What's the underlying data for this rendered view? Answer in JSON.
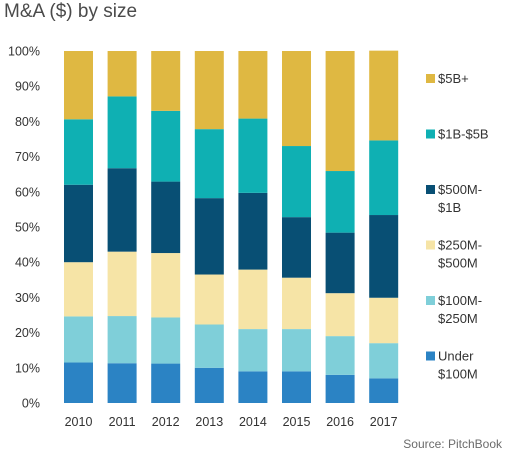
{
  "chart_data": {
    "type": "bar",
    "stacked": true,
    "title": "M&A ($) by size",
    "source": "Source: PitchBook",
    "categories": [
      "2010",
      "2011",
      "2012",
      "2013",
      "2014",
      "2015",
      "2016",
      "2017"
    ],
    "ylim": [
      0,
      100
    ],
    "yticks": [
      "0%",
      "10%",
      "20%",
      "30%",
      "40%",
      "50%",
      "60%",
      "70%",
      "80%",
      "90%",
      "100%"
    ],
    "legend_position": "right",
    "grid": false,
    "series": [
      {
        "name": "Under $100M",
        "label_lines": [
          "Under",
          "$100M"
        ],
        "color": "#2b83c4",
        "values": [
          11.5,
          11.3,
          11.2,
          10,
          9,
          9,
          8,
          7
        ]
      },
      {
        "name": "$100M-$250M",
        "label_lines": [
          "$100M-",
          "$250M"
        ],
        "color": "#7fcfd9",
        "values": [
          13.1,
          13.4,
          13.1,
          12.3,
          12,
          12,
          11,
          10
        ]
      },
      {
        "name": "$250M-$500M",
        "label_lines": [
          "$250M-",
          "$500M"
        ],
        "color": "#f6e4a6",
        "values": [
          15.4,
          18.3,
          18.3,
          14.2,
          16.9,
          14.6,
          12.2,
          12.9
        ]
      },
      {
        "name": "$500M-$1B",
        "label_lines": [
          "$500M-",
          "$1B"
        ],
        "color": "#084f74",
        "values": [
          22,
          23.7,
          20.3,
          21.7,
          21.8,
          17.2,
          17.2,
          23.5
        ]
      },
      {
        "name": "$1B-$5B",
        "label_lines": [
          "$1B-$5B"
        ],
        "color": "#0fb0b3",
        "values": [
          18.6,
          20.4,
          20.1,
          19.6,
          21.1,
          20.2,
          17.5,
          21.2
        ]
      },
      {
        "name": "$5B+",
        "label_lines": [
          "$5B+"
        ],
        "color": "#dfb842",
        "values": [
          19.4,
          12.9,
          17,
          22.2,
          19.2,
          27,
          34.1,
          25.5
        ]
      }
    ]
  }
}
